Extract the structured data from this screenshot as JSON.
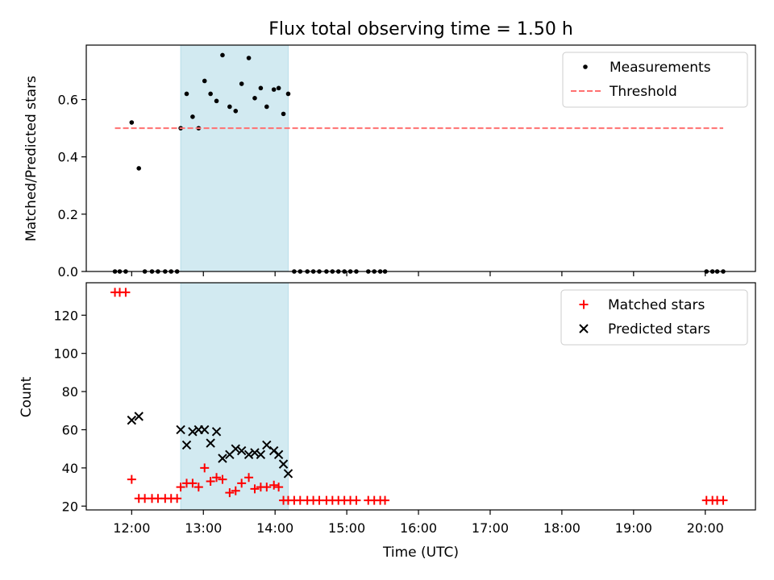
{
  "chart_data": [
    {
      "type": "scatter",
      "title": "Flux total observing time = 1.50 h",
      "xlabel": "",
      "ylabel": "Matched/Predicted stars",
      "xlim": [
        "11:22",
        "20:42"
      ],
      "ylim": [
        0,
        0.79
      ],
      "yticks": [
        "0.0",
        "0.2",
        "0.4",
        "0.6"
      ],
      "ytick_values": [
        0,
        0.2,
        0.4,
        0.6
      ],
      "grid": false,
      "legend_position": "top-right",
      "highlight_span": [
        "12:41",
        "14:11"
      ],
      "highlight_color": "#add8e6",
      "series": [
        {
          "name": "Measurements",
          "color": "#000000",
          "marker": "dot",
          "x": [
            "11:46",
            "11:50",
            "11:55",
            "12:00",
            "12:06",
            "12:11",
            "12:17",
            "12:22",
            "12:28",
            "12:33",
            "12:38",
            "12:41",
            "12:46",
            "12:51",
            "12:56",
            "13:01",
            "13:06",
            "13:11",
            "13:16",
            "13:22",
            "13:27",
            "13:32",
            "13:38",
            "13:43",
            "13:48",
            "13:53",
            "13:59",
            "14:03",
            "14:07",
            "14:11",
            "14:16",
            "14:21",
            "14:27",
            "14:32",
            "14:37",
            "14:43",
            "14:48",
            "14:53",
            "14:58",
            "15:03",
            "15:08",
            "15:18",
            "15:23",
            "15:28",
            "15:32",
            "20:01",
            "20:06",
            "20:10",
            "20:15"
          ],
          "y": [
            0,
            0,
            0,
            0.52,
            0.36,
            0,
            0,
            0,
            0,
            0,
            0,
            0.5,
            0.62,
            0.54,
            0.5,
            0.665,
            0.62,
            0.595,
            0.755,
            0.575,
            0.56,
            0.655,
            0.745,
            0.605,
            0.64,
            0.575,
            0.635,
            0.64,
            0.55,
            0.62,
            0,
            0,
            0,
            0,
            0,
            0,
            0,
            0,
            0,
            0,
            0,
            0,
            0,
            0,
            0,
            0,
            0,
            0,
            0
          ]
        },
        {
          "name": "Threshold",
          "color": "#ff7070",
          "line_style": "dashed",
          "x": [
            "11:46",
            "20:15"
          ],
          "y": [
            0.5,
            0.5
          ]
        }
      ]
    },
    {
      "type": "scatter",
      "title": "",
      "xlabel": "Time (UTC)",
      "ylabel": "Count",
      "xlim": [
        "11:22",
        "20:42"
      ],
      "ylim": [
        18,
        137
      ],
      "xticks": [
        "12:00",
        "13:00",
        "14:00",
        "15:00",
        "16:00",
        "17:00",
        "18:00",
        "19:00",
        "20:00"
      ],
      "yticks": [
        "20",
        "40",
        "60",
        "80",
        "100",
        "120"
      ],
      "ytick_values": [
        20,
        40,
        60,
        80,
        100,
        120
      ],
      "grid": false,
      "legend_position": "top-right",
      "highlight_span": [
        "12:41",
        "14:11"
      ],
      "highlight_color": "#add8e6",
      "series": [
        {
          "name": "Matched stars",
          "color": "#ff0000",
          "marker": "plus",
          "x": [
            "11:46",
            "11:50",
            "11:55",
            "12:00",
            "12:06",
            "12:11",
            "12:17",
            "12:22",
            "12:28",
            "12:33",
            "12:38",
            "12:41",
            "12:46",
            "12:51",
            "12:56",
            "13:01",
            "13:06",
            "13:11",
            "13:16",
            "13:22",
            "13:27",
            "13:32",
            "13:38",
            "13:43",
            "13:48",
            "13:53",
            "13:59",
            "14:03",
            "14:07",
            "14:11",
            "14:16",
            "14:21",
            "14:27",
            "14:32",
            "14:37",
            "14:43",
            "14:48",
            "14:53",
            "14:58",
            "15:03",
            "15:08",
            "15:18",
            "15:23",
            "15:28",
            "15:32",
            "20:01",
            "20:06",
            "20:10",
            "20:15"
          ],
          "y": [
            132,
            132,
            132,
            34,
            24,
            24,
            24,
            24,
            24,
            24,
            24,
            30,
            32,
            32,
            30,
            40,
            33,
            35,
            34,
            27,
            28,
            32,
            35,
            29,
            30,
            30,
            31,
            30,
            23,
            23,
            23,
            23,
            23,
            23,
            23,
            23,
            23,
            23,
            23,
            23,
            23,
            23,
            23,
            23,
            23,
            23,
            23,
            23,
            23
          ]
        },
        {
          "name": "Predicted stars",
          "color": "#000000",
          "marker": "x",
          "x": [
            "12:00",
            "12:06",
            "12:41",
            "12:46",
            "12:51",
            "12:56",
            "13:01",
            "13:06",
            "13:11",
            "13:16",
            "13:22",
            "13:27",
            "13:32",
            "13:38",
            "13:43",
            "13:48",
            "13:53",
            "13:59",
            "14:03",
            "14:07",
            "14:11"
          ],
          "y": [
            65,
            67,
            60,
            52,
            59,
            60,
            60,
            53,
            59,
            45,
            47,
            50,
            49,
            47,
            48,
            47,
            52,
            49,
            47,
            42,
            37
          ]
        }
      ]
    }
  ]
}
